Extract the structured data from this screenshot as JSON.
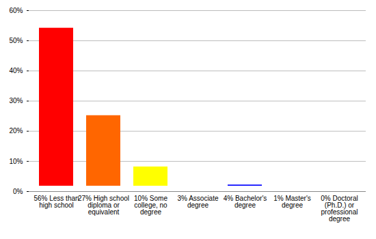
{
  "chart_data": {
    "type": "bar",
    "categories": [
      "56% Less than high school",
      "27% High school diploma or equivalent",
      "10% Some college, no degree",
      "3% Associate degree",
      "4% Bachelor's degree",
      "1% Master's degree",
      "0% Doctoral (Ph.D.) or professional degree"
    ],
    "values": [
      56,
      27,
      10,
      3,
      4,
      1,
      0
    ],
    "colors": [
      "#ff0000",
      "#ff6600",
      "#ffff00",
      "#009900",
      "#0000ff",
      "#9900ff",
      "#ff00ff"
    ],
    "ylim": [
      0,
      60
    ],
    "yticks": [
      {
        "value": 0,
        "label": "0%"
      },
      {
        "value": 10,
        "label": "10%"
      },
      {
        "value": 20,
        "label": "20%"
      },
      {
        "value": 30,
        "label": "30%"
      },
      {
        "value": 40,
        "label": "40%"
      },
      {
        "value": 50,
        "label": "50%"
      },
      {
        "value": 60,
        "label": "60%"
      }
    ],
    "grid": true
  }
}
